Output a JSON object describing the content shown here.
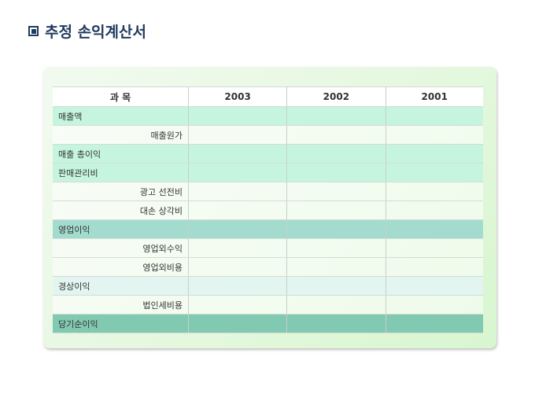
{
  "title": "추정 손익계산서",
  "table": {
    "headers": [
      "과 목",
      "2003",
      "2002",
      "2001"
    ],
    "rows": [
      {
        "label": "매출액",
        "style": "mint",
        "indent": false
      },
      {
        "label": "매출원가",
        "style": "plain",
        "indent": true
      },
      {
        "label": "매출 총이익",
        "style": "mint",
        "indent": false
      },
      {
        "label": "판매관리비",
        "style": "mint",
        "indent": false
      },
      {
        "label": "광고 선전비",
        "style": "plain",
        "indent": true
      },
      {
        "label": "대손 상각비",
        "style": "plain",
        "indent": true
      },
      {
        "label": "영업이익",
        "style": "op",
        "indent": false
      },
      {
        "label": "영업외수익",
        "style": "plain",
        "indent": true
      },
      {
        "label": "영업외비용",
        "style": "plain",
        "indent": true
      },
      {
        "label": "경상이익",
        "style": "ord",
        "indent": false
      },
      {
        "label": "법인세비용",
        "style": "plain",
        "indent": true
      },
      {
        "label": "당기순이익",
        "style": "net",
        "indent": false
      }
    ]
  }
}
